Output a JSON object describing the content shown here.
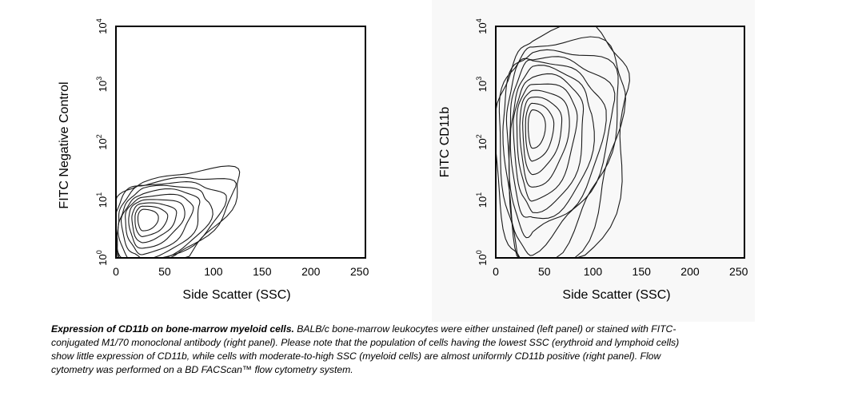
{
  "chart_data": [
    {
      "type": "contour",
      "panel": "left",
      "ylabel": "FITC Negative Control",
      "xlabel": "Side Scatter (SSC)",
      "xlim": [
        0,
        256
      ],
      "xticks": [
        0,
        50,
        100,
        150,
        200,
        250
      ],
      "yscale": "log",
      "ylim": [
        1,
        10000
      ],
      "yticks": [
        {
          "base": "10",
          "exp": "0"
        },
        {
          "base": "10",
          "exp": "1"
        },
        {
          "base": "10",
          "exp": "2"
        },
        {
          "base": "10",
          "exp": "3"
        },
        {
          "base": "10",
          "exp": "4"
        }
      ],
      "peak": {
        "x": 28,
        "y": 5
      },
      "contour_count": 10
    },
    {
      "type": "contour",
      "panel": "right",
      "ylabel": "FITC CD11b",
      "xlabel": "Side Scatter (SSC)",
      "xlim": [
        0,
        256
      ],
      "xticks": [
        0,
        50,
        100,
        150,
        200,
        250
      ],
      "yscale": "log",
      "ylim": [
        1,
        10000
      ],
      "yticks": [
        {
          "base": "10",
          "exp": "0"
        },
        {
          "base": "10",
          "exp": "1"
        },
        {
          "base": "10",
          "exp": "2"
        },
        {
          "base": "10",
          "exp": "3"
        },
        {
          "base": "10",
          "exp": "4"
        }
      ],
      "peak": {
        "x": 38,
        "y": 200
      },
      "contour_count": 12
    }
  ],
  "caption": {
    "title": "Expression of CD11b on bone-marrow myeloid cells.",
    "body": " BALB/c bone-marrow leukocytes were either unstained (left panel) or stained with FITC-conjugated M1/70 monoclonal antibody (right panel). Please note that the population of cells having the lowest SSC (erythroid and lymphoid cells) show little expression of CD11b, while cells with moderate-to-high SSC (myeloid cells) are almost uniformly CD11b positive (right panel). Flow cytometry was performed on a BD FACScan™ flow cytometry system."
  }
}
